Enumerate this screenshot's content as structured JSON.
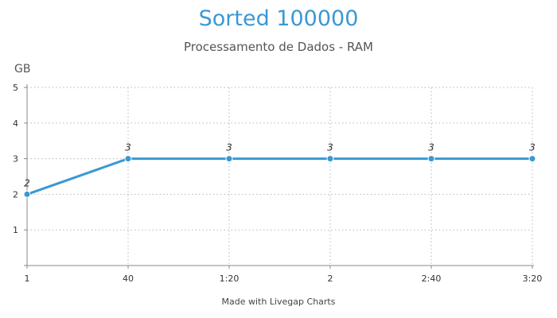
{
  "chart_data": {
    "type": "line",
    "title": "Sorted 100000",
    "subtitle": "Processamento de Dados - RAM",
    "ylabel": "GB",
    "xlabel": "",
    "categories": [
      "1",
      "40",
      "1:20",
      "2",
      "2:40",
      "3:20"
    ],
    "series": [
      {
        "values": [
          2,
          3,
          3,
          3,
          3,
          3
        ]
      }
    ],
    "ylim": [
      0,
      5
    ],
    "yticks": [
      "1",
      "2",
      "3",
      "4",
      "5"
    ],
    "grid": true,
    "legend": "none",
    "line_color": "#3a98d4"
  },
  "footer": "Made with Livegap Charts"
}
